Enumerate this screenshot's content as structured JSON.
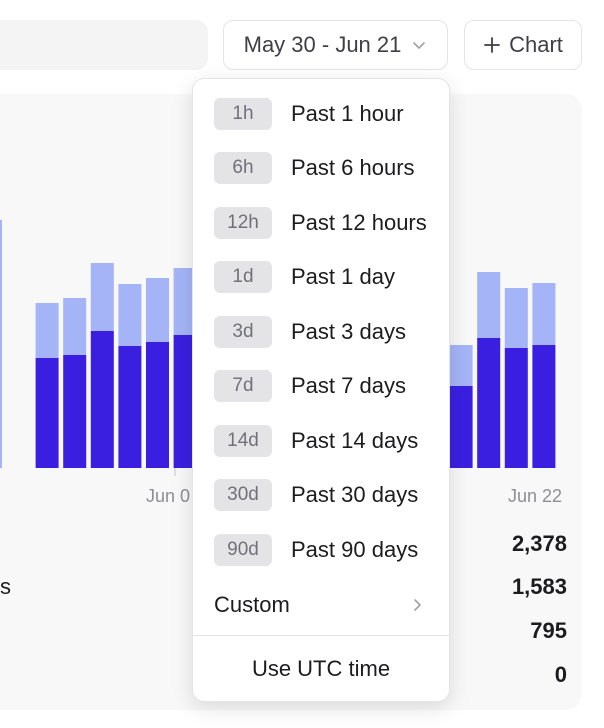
{
  "toolbar": {
    "date_range_label": "May 30 - Jun 21",
    "add_chart_label": "Chart",
    "colors": {
      "border": "#e4e4e7",
      "text": "#3f3f46"
    }
  },
  "chart_data": {
    "type": "bar",
    "stacked": true,
    "series": [
      {
        "color": "#3a1fe0",
        "values": [
          null,
          110,
          113,
          137,
          122,
          126,
          133,
          126,
          0,
          0,
          0,
          0,
          0,
          0,
          0,
          0,
          82,
          130,
          120,
          123
        ]
      },
      {
        "color": "#a4b4f6",
        "values": [
          null,
          55,
          57,
          68,
          62,
          64,
          67,
          63,
          0,
          0,
          0,
          0,
          0,
          0,
          0,
          0,
          41,
          66,
          60,
          62
        ]
      }
    ],
    "x_tick_labels": [
      "Jun 0",
      "Jun 22"
    ],
    "legend": "none",
    "grid": false
  },
  "stats": {
    "label_fragment": "s",
    "values": [
      "2,378",
      "1,583",
      "795",
      "0"
    ]
  },
  "dropdown": {
    "options": [
      {
        "badge": "1h",
        "label": "Past 1 hour"
      },
      {
        "badge": "6h",
        "label": "Past 6 hours"
      },
      {
        "badge": "12h",
        "label": "Past 12 hours"
      },
      {
        "badge": "1d",
        "label": "Past 1 day"
      },
      {
        "badge": "3d",
        "label": "Past 3 days"
      },
      {
        "badge": "7d",
        "label": "Past 7 days"
      },
      {
        "badge": "14d",
        "label": "Past 14 days"
      },
      {
        "badge": "30d",
        "label": "Past 30 days"
      },
      {
        "badge": "90d",
        "label": "Past 90 days"
      }
    ],
    "custom_label": "Custom",
    "utc_label": "Use UTC time"
  }
}
